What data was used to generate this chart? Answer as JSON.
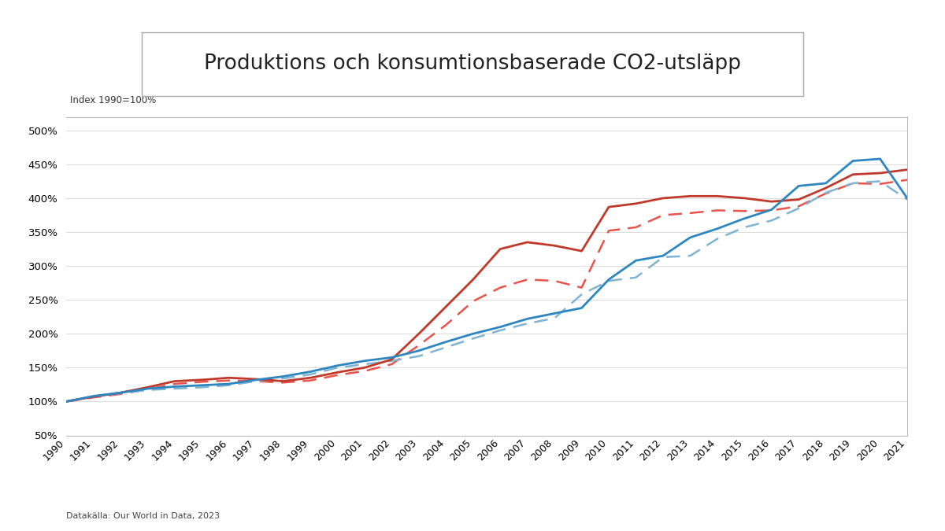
{
  "title": "Produktions och konsumtionsbaserade CO2-utsläpp",
  "ylabel": "Index 1990=100%",
  "source": "Datakälla: Our World in Data, 2023",
  "years": [
    1990,
    1991,
    1992,
    1993,
    1994,
    1995,
    1996,
    1997,
    1998,
    1999,
    2000,
    2001,
    2002,
    2003,
    2004,
    2005,
    2006,
    2007,
    2008,
    2009,
    2010,
    2011,
    2012,
    2013,
    2014,
    2015,
    2016,
    2017,
    2018,
    2019,
    2020,
    2021
  ],
  "china_prod": [
    100,
    107,
    113,
    121,
    130,
    132,
    135,
    133,
    130,
    135,
    143,
    150,
    162,
    200,
    240,
    280,
    325,
    335,
    330,
    322,
    387,
    392,
    400,
    403,
    403,
    400,
    395,
    398,
    415,
    435,
    437,
    442
  ],
  "china_cons": [
    100,
    106,
    111,
    118,
    126,
    129,
    131,
    130,
    128,
    131,
    139,
    145,
    155,
    183,
    213,
    248,
    268,
    280,
    278,
    268,
    352,
    357,
    375,
    378,
    382,
    381,
    382,
    388,
    407,
    422,
    421,
    427
  ],
  "india_prod": [
    100,
    108,
    113,
    119,
    122,
    124,
    126,
    132,
    137,
    144,
    153,
    160,
    165,
    175,
    188,
    200,
    210,
    222,
    230,
    238,
    280,
    308,
    315,
    342,
    355,
    370,
    383,
    418,
    422,
    455,
    458,
    400
  ],
  "india_cons": [
    100,
    107,
    112,
    117,
    119,
    121,
    124,
    130,
    134,
    140,
    150,
    155,
    160,
    167,
    180,
    193,
    205,
    215,
    223,
    258,
    278,
    283,
    313,
    315,
    340,
    357,
    367,
    385,
    408,
    422,
    425,
    398
  ],
  "china_prod_color": "#C0392B",
  "china_cons_color": "#E8534A",
  "india_prod_color": "#2E86C1",
  "india_cons_color": "#7FB3D3",
  "ylim": [
    50,
    520
  ],
  "yticks": [
    50,
    100,
    150,
    200,
    250,
    300,
    350,
    400,
    450,
    500
  ],
  "bg_color": "#FFFFFF",
  "plot_bg_color": "#FFFFFF",
  "panel_bg_color": "#F5F5F5",
  "grid_color": "#DDDDDD",
  "spine_color": "#AAAAAA"
}
